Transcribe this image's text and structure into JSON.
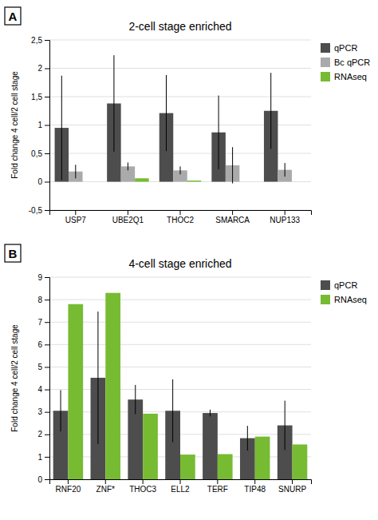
{
  "chart_data": [
    {
      "type": "bar",
      "title": "2-cell stage enriched",
      "ylabel": "Fold change 4 cell/2 cell stage",
      "annotations": [
        "A"
      ],
      "categories": [
        "USP7",
        "UBE2Q1",
        "THOC2",
        "SMARCA",
        "NUP133"
      ],
      "series": [
        {
          "name": "qPCR",
          "color": "#4d4d4d",
          "values": [
            0.95,
            1.38,
            1.21,
            0.87,
            1.25
          ],
          "errors": [
            0.92,
            0.85,
            0.67,
            0.65,
            0.67
          ]
        },
        {
          "name": "Bc qPCR",
          "color": "#aaaaaa",
          "values": [
            0.18,
            0.27,
            0.2,
            0.29,
            0.21
          ],
          "errors": [
            0.12,
            0.07,
            0.07,
            0.32,
            0.12
          ]
        },
        {
          "name": "RNAseq",
          "color": "#77bb33",
          "values": [
            0.0,
            0.06,
            0.02,
            0.0,
            0.0
          ]
        }
      ],
      "ylim": [
        -0.5,
        2.5
      ],
      "yticks": [
        {
          "value": -0.5,
          "label": "-0,5"
        },
        0,
        {
          "value": 0.5,
          "label": "0,5"
        },
        1,
        {
          "value": 1.5,
          "label": "1,5"
        },
        2,
        {
          "value": 2.5,
          "label": "2,5"
        }
      ],
      "grid": true,
      "legend": "right"
    },
    {
      "type": "bar",
      "title": "4-cell stage enriched",
      "ylabel": "Fold change 4 cell/2 cell stage",
      "annotations": [
        "B"
      ],
      "categories": [
        "RNF20",
        "ZNF*",
        "THOC3",
        "ELL2",
        "TERF",
        "TIP48",
        "SNURP"
      ],
      "series": [
        {
          "name": "qPCR",
          "color": "#4d4d4d",
          "values": [
            3.05,
            4.52,
            3.55,
            3.05,
            2.95,
            1.83,
            2.4
          ],
          "errors": [
            0.92,
            2.95,
            0.65,
            1.4,
            0.15,
            0.55,
            1.1
          ]
        },
        {
          "name": "RNAseq",
          "color": "#77bb33",
          "values": [
            7.8,
            8.3,
            2.92,
            1.1,
            1.12,
            1.9,
            1.55
          ]
        }
      ],
      "ylim": [
        0,
        9
      ],
      "yticks": [
        0,
        1,
        2,
        3,
        4,
        5,
        6,
        7,
        8,
        9
      ],
      "grid": true,
      "legend": "right"
    }
  ]
}
